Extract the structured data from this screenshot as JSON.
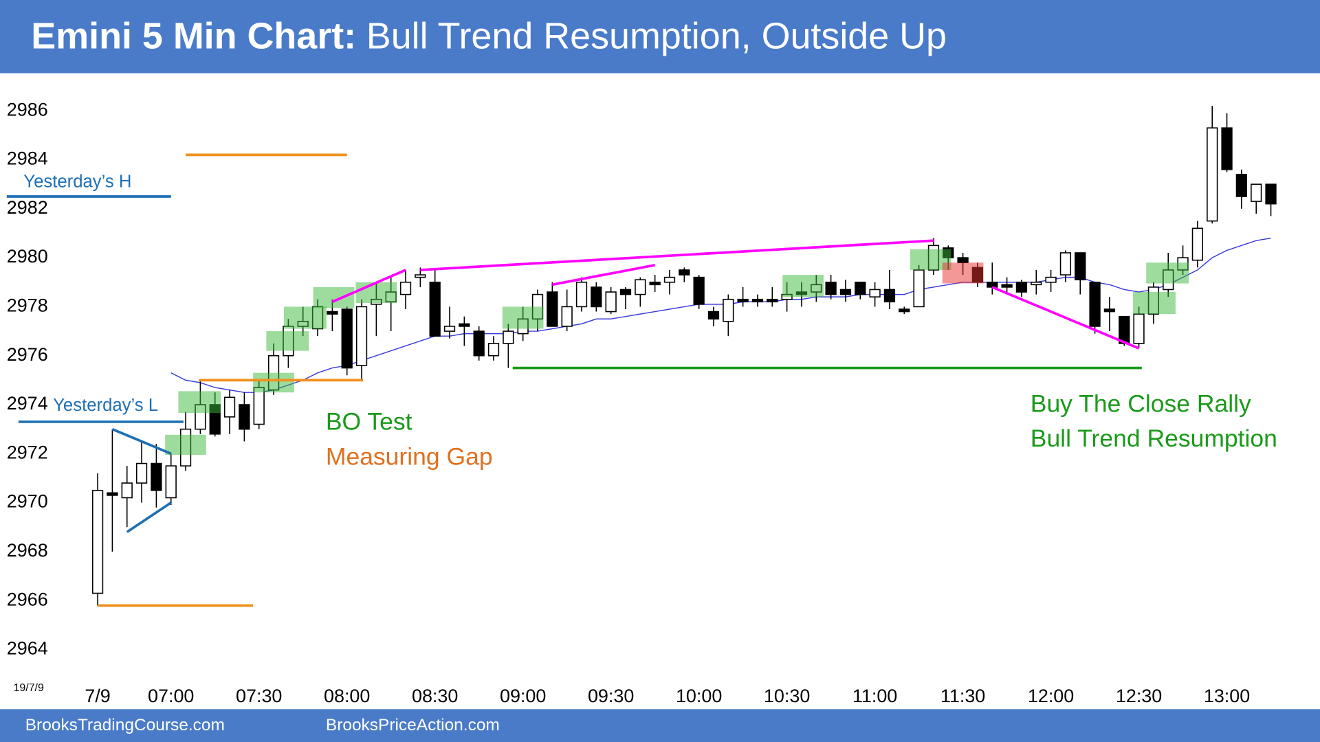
{
  "chart_data": {
    "type": "candlestick",
    "title": "Emini 5 Min Chart:",
    "subtitle": "Bull Trend Resumption, Outside Up",
    "date_label": "19/7/9",
    "categories": [
      "7/9",
      null,
      null,
      null,
      null,
      "07:00",
      null,
      null,
      null,
      null,
      null,
      "07:30",
      null,
      null,
      null,
      null,
      null,
      "08:00",
      null,
      null,
      null,
      null,
      null,
      "08:30",
      null,
      null,
      null,
      null,
      null,
      "09:00",
      null,
      null,
      null,
      null,
      null,
      "09:30",
      null,
      null,
      null,
      null,
      null,
      "10:00",
      null,
      null,
      null,
      null,
      null,
      "10:30",
      null,
      null,
      null,
      null,
      null,
      "11:00",
      null,
      null,
      null,
      null,
      null,
      "11:30",
      null,
      null,
      null,
      null,
      null,
      "12:00",
      null,
      null,
      null,
      null,
      null,
      "12:30",
      null,
      null,
      null,
      null,
      null,
      "13:00",
      null,
      null,
      null
    ],
    "open": [
      2966.3,
      2970.4,
      2970.2,
      2970.8,
      2971.6,
      2970.2,
      2971.5,
      2973,
      2974,
      2973.5,
      2974,
      2973.2,
      2974.6,
      2976,
      2977.2,
      2977.1,
      2977.8,
      2977.9,
      2975.6,
      2978.1,
      2978.2,
      2978.5,
      2979.2,
      2979,
      2977,
      2977.3,
      2977,
      2976,
      2976.5,
      2976.9,
      2977.5,
      2978.6,
      2977.2,
      2978,
      2978.8,
      2977.8,
      2978.7,
      2978.5,
      2979,
      2979,
      2979.5,
      2979.2,
      2977.8,
      2977.4,
      2978.3,
      2978.3,
      2978.3,
      2978.3,
      2978.6,
      2978.6,
      2979,
      2978.7,
      2979,
      2978.4,
      2978.7,
      2977.9,
      2978,
      2979.5,
      2980.4,
      2980,
      2979.6,
      2979,
      2978.9,
      2979,
      2978.9,
      2979,
      2979.3,
      2980.2,
      2979,
      2977.9,
      2977.6,
      2976.5,
      2977.7,
      2978.7,
      2979.5,
      2979.9,
      2981.5,
      2985.3,
      2983.4,
      2982.3,
      2983
    ],
    "high": [
      2971.2,
      2973,
      2971.5,
      2972.5,
      2972.4,
      2972,
      2973.7,
      2975,
      2974.5,
      2974.6,
      2974.5,
      2975,
      2976.5,
      2977.5,
      2978,
      2978.3,
      2978.3,
      2978,
      2978.3,
      2979,
      2979.2,
      2979.5,
      2979.6,
      2979.5,
      2978,
      2977.6,
      2977.2,
      2976.8,
      2977.3,
      2978,
      2978.7,
      2979,
      2978.7,
      2979.2,
      2979,
      2978.8,
      2978.8,
      2979.2,
      2979.3,
      2979.5,
      2979.6,
      2979.3,
      2978,
      2978.5,
      2978.8,
      2978.5,
      2978.8,
      2979,
      2979,
      2979.3,
      2979.3,
      2979.1,
      2979,
      2979,
      2979.5,
      2978,
      2979.7,
      2980.8,
      2980.5,
      2980.2,
      2979.8,
      2979.8,
      2979.2,
      2979.1,
      2979.5,
      2979.5,
      2980.3,
      2980.2,
      2979,
      2978.4,
      2977.6,
      2978,
      2979,
      2980.2,
      2980.5,
      2981.5,
      2986.2,
      2985.9,
      2983.6,
      2983,
      2983
    ],
    "low": [
      2965.8,
      2968,
      2969,
      2970,
      2969.8,
      2969.9,
      2971.3,
      2972.8,
      2972.7,
      2972.8,
      2972.5,
      2973,
      2974.4,
      2975.5,
      2976.8,
      2976.8,
      2977,
      2975.2,
      2975,
      2976.8,
      2977,
      2977.9,
      2978.8,
      2976.8,
      2976.7,
      2976.4,
      2975.8,
      2975.8,
      2975.5,
      2976.6,
      2977,
      2977.2,
      2977,
      2977.8,
      2977.8,
      2977.7,
      2977.9,
      2978,
      2978.6,
      2978.5,
      2979,
      2977.9,
      2977.2,
      2976.8,
      2978,
      2978,
      2978,
      2977.8,
      2978,
      2978.2,
      2978.3,
      2978.2,
      2978.3,
      2978,
      2977.9,
      2977.7,
      2978,
      2979.3,
      2979.5,
      2979.3,
      2978.8,
      2978.5,
      2978.5,
      2978.4,
      2978.5,
      2978.6,
      2979,
      2978.5,
      2976.9,
      2977,
      2976.4,
      2976.3,
      2977.3,
      2978.4,
      2979.3,
      2979.6,
      2981.4,
      2983.5,
      2982,
      2981.8,
      2981.7
    ],
    "close": [
      2970.5,
      2970.3,
      2970.8,
      2971.6,
      2970.5,
      2971.5,
      2973,
      2974,
      2972.8,
      2974.3,
      2973,
      2974.7,
      2976,
      2977.2,
      2977.4,
      2978,
      2977.7,
      2975.5,
      2978,
      2978.3,
      2978.6,
      2979,
      2979.3,
      2976.8,
      2977.2,
      2977.2,
      2976,
      2976.5,
      2977,
      2977.5,
      2978.5,
      2977.2,
      2978,
      2979,
      2978,
      2978.6,
      2978.5,
      2979.1,
      2978.9,
      2979.2,
      2979.3,
      2978.1,
      2977.5,
      2978.3,
      2978.2,
      2978.2,
      2978.2,
      2978.5,
      2978.5,
      2978.9,
      2978.5,
      2978.5,
      2978.5,
      2978.7,
      2978.2,
      2977.8,
      2979.5,
      2980.5,
      2980,
      2979.8,
      2979,
      2978.8,
      2978.8,
      2978.6,
      2979,
      2979.2,
      2980.2,
      2979.1,
      2977.2,
      2977.8,
      2976.5,
      2977.7,
      2978.8,
      2979.5,
      2980,
      2981.2,
      2985.3,
      2983.6,
      2982.5,
      2983,
      2982.2
    ],
    "up_color": "#ffffff",
    "down_color": "#000000",
    "ema": {
      "color": "#3b3bdc",
      "values": [
        null,
        null,
        null,
        null,
        null,
        2975.3,
        2975,
        2974.9,
        2974.7,
        2974.6,
        2974.5,
        2974.5,
        2974.6,
        2974.8,
        2975,
        2975.3,
        2975.5,
        2975.6,
        2975.8,
        2976,
        2976.2,
        2976.4,
        2976.6,
        2976.8,
        2976.8,
        2976.9,
        2976.9,
        2976.9,
        2976.9,
        2977,
        2977,
        2977.1,
        2977.2,
        2977.3,
        2977.5,
        2977.5,
        2977.6,
        2977.7,
        2977.8,
        2977.9,
        2978,
        2978.1,
        2978.1,
        2978.1,
        2978.2,
        2978.2,
        2978.2,
        2978.3,
        2978.3,
        2978.4,
        2978.4,
        2978.4,
        2978.5,
        2978.5,
        2978.5,
        2978.5,
        2978.7,
        2978.8,
        2978.9,
        2979,
        2979,
        2979,
        2979,
        2979,
        2979,
        2979.1,
        2979.2,
        2979.2,
        2979,
        2978.9,
        2978.7,
        2978.6,
        2978.7,
        2978.9,
        2979.2,
        2979.5,
        2980,
        2980.3,
        2980.5,
        2980.7,
        2980.8
      ]
    },
    "xlim": [
      -6.66,
      83.35
    ],
    "ylim": [
      2962.7,
      2987.5
    ],
    "yticks": [
      2964,
      2966,
      2968,
      2970,
      2972,
      2974,
      2976,
      2978,
      2980,
      2982,
      2984,
      2986
    ],
    "lines": [
      {
        "color": "#f0901e",
        "x": [
          6,
          17
        ],
        "y": [
          2984.2,
          2984.2
        ]
      },
      {
        "color": "#1f6fb4",
        "x": [
          -6.2,
          5
        ],
        "y": [
          2982.5,
          2982.5
        ]
      },
      {
        "color": "#1f6fb4",
        "x": [
          -5.4,
          5.85
        ],
        "y": [
          2973.3,
          2973.3
        ]
      },
      {
        "color": "#f0901e",
        "x": [
          0,
          10.6
        ],
        "y": [
          2965.8,
          2965.8
        ]
      },
      {
        "color": "#f0901e",
        "x": [
          6.9,
          18.1
        ],
        "y": [
          2975,
          2975
        ]
      },
      {
        "color": "#1a9a1a",
        "x": [
          28.3,
          71.2
        ],
        "y": [
          2975.5,
          2975.5
        ]
      },
      {
        "color": "#ff00ff",
        "x": [
          16,
          21
        ],
        "y": [
          2978.2,
          2979.5
        ]
      },
      {
        "color": "#ff00ff",
        "x": [
          22,
          57
        ],
        "y": [
          2979.5,
          2980.7
        ]
      },
      {
        "color": "#ff00ff",
        "x": [
          31,
          38
        ],
        "y": [
          2978.9,
          2979.7
        ]
      },
      {
        "color": "#ff00ff",
        "x": [
          61,
          71
        ],
        "y": [
          2978.8,
          2976.3
        ]
      },
      {
        "color": "#1f6fb4",
        "x": [
          1,
          5
        ],
        "y": [
          2973,
          2972
        ]
      },
      {
        "color": "#1f6fb4",
        "x": [
          2,
          5
        ],
        "y": [
          2968.8,
          2970
        ]
      }
    ],
    "zones": [
      {
        "color": "#3cb93c",
        "x": [
          4.6,
          7.4
        ],
        "y": [
          2971.95,
          2972.77
        ]
      },
      {
        "color": "#3cb93c",
        "x": [
          5.5,
          8.4
        ],
        "y": [
          2973.66,
          2974.55
        ]
      },
      {
        "color": "#3cb93c",
        "x": [
          10.6,
          13.4
        ],
        "y": [
          2974.5,
          2975.3
        ]
      },
      {
        "color": "#3cb93c",
        "x": [
          11.5,
          14.4
        ],
        "y": [
          2976.2,
          2977
        ]
      },
      {
        "color": "#3cb93c",
        "x": [
          12.7,
          15.6
        ],
        "y": [
          2977.1,
          2978
        ]
      },
      {
        "color": "#3cb93c",
        "x": [
          14.7,
          17.5
        ],
        "y": [
          2977.95,
          2978.8
        ]
      },
      {
        "color": "#3cb93c",
        "x": [
          17.6,
          20.4
        ],
        "y": [
          2978.15,
          2979
        ]
      },
      {
        "color": "#3cb93c",
        "x": [
          27.6,
          30.4
        ],
        "y": [
          2977.1,
          2978
        ]
      },
      {
        "color": "#3cb93c",
        "x": [
          46.7,
          49.5
        ],
        "y": [
          2978.4,
          2979.3
        ]
      },
      {
        "color": "#3cb93c",
        "x": [
          55.4,
          58.2
        ],
        "y": [
          2979.5,
          2980.35
        ]
      },
      {
        "color": "#e83030",
        "x": [
          57.6,
          60.4
        ],
        "y": [
          2978.95,
          2979.8
        ]
      },
      {
        "color": "#3cb93c",
        "x": [
          70.6,
          73.5
        ],
        "y": [
          2977.7,
          2978.6
        ]
      },
      {
        "color": "#3cb93c",
        "x": [
          71.5,
          74.4
        ],
        "y": [
          2978.95,
          2979.8
        ]
      }
    ],
    "labels": [
      {
        "text": "Yesterday’s H",
        "color": "#1f6fb4"
      },
      {
        "text": "Yesterday’s L",
        "color": "#1f6fb4"
      },
      {
        "text": "BO Test",
        "color": "#1a9a1a"
      },
      {
        "text": "Measuring Gap",
        "color": "#e07020"
      },
      {
        "text": "Buy The Close Rally",
        "color": "#1a9a1a"
      },
      {
        "text": "Bull Trend Resumption",
        "color": "#1a9a1a"
      }
    ]
  },
  "footer": [
    "BrooksTradingCourse.com",
    "BrooksPriceAction.com"
  ]
}
